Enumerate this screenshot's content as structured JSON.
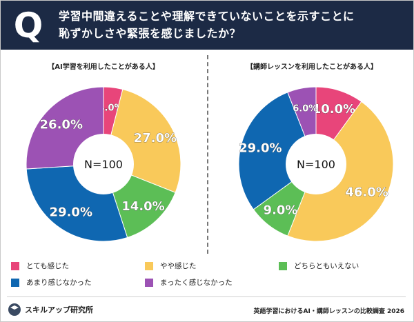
{
  "header": {
    "q_letter": "Q",
    "title_line1": "学習中間違えることや理解できていないことを示すことに",
    "title_line2": "恥ずかしさや緊張を感じましたか？"
  },
  "colors": {
    "とても感じた": "#e8457a",
    "やや感じた": "#f9c95a",
    "どちらともいえない": "#5cbe56",
    "あまり感じなかった": "#0f67b1",
    "まったく感じなかった": "#9c52b4"
  },
  "chart_data": [
    {
      "type": "pie",
      "title": "【AI学習を利用したことがある人】",
      "center_label": "N=100",
      "slices": [
        {
          "label": "とても感じた",
          "value": 4.0,
          "display": "4.0%"
        },
        {
          "label": "やや感じた",
          "value": 27.0,
          "display": "27.0%"
        },
        {
          "label": "どちらともいえない",
          "value": 14.0,
          "display": "14.0%"
        },
        {
          "label": "あまり感じなかった",
          "value": 29.0,
          "display": "29.0%"
        },
        {
          "label": "まったく感じなかった",
          "value": 26.0,
          "display": "26.0%"
        }
      ]
    },
    {
      "type": "pie",
      "title": "【講師レッスンを利用したことがある人】",
      "center_label": "N=100",
      "slices": [
        {
          "label": "とても感じた",
          "value": 10.0,
          "display": "10.0%"
        },
        {
          "label": "やや感じた",
          "value": 46.0,
          "display": "46.0%"
        },
        {
          "label": "どちらともいえない",
          "value": 9.0,
          "display": "9.0%"
        },
        {
          "label": "あまり感じなかった",
          "value": 29.0,
          "display": "29.0%"
        },
        {
          "label": "まったく感じなかった",
          "value": 6.0,
          "display": "6.0%"
        }
      ]
    }
  ],
  "legend": [
    "とても感じた",
    "やや感じた",
    "どちらともいえない",
    "あまり感じなかった",
    "まったく感じなかった"
  ],
  "footer": {
    "brand": "スキルアップ研究所",
    "source": "英語学習におけるAI・講師レッスンの比較調査 2026"
  }
}
